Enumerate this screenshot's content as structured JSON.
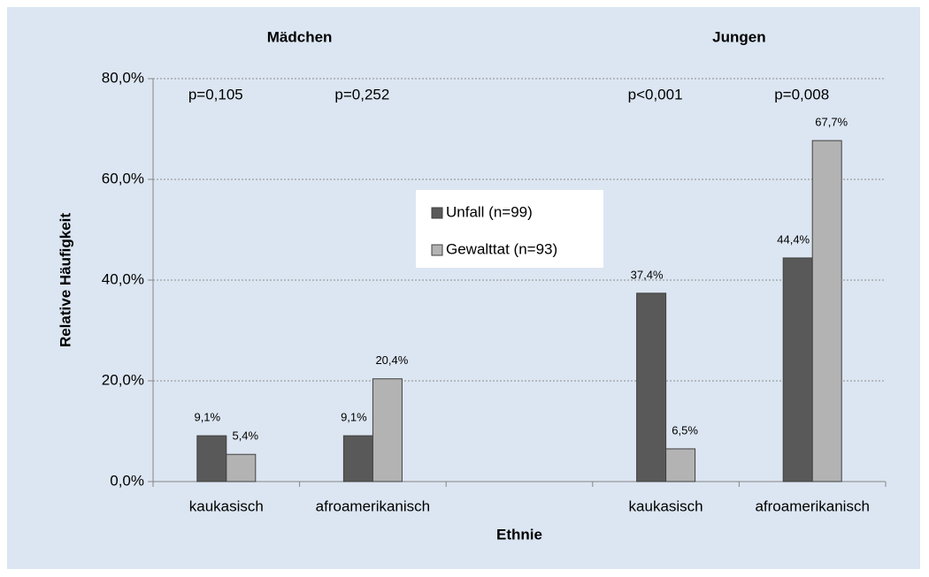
{
  "chart_data": {
    "type": "bar",
    "y_label": "Relative Häufigkeit",
    "x_label": "Ethnie",
    "groups": [
      "Mädchen",
      "Jungen"
    ],
    "categories": [
      "kaukasisch",
      "afroamerikanisch",
      null,
      "kaukasisch",
      "afroamerikanisch"
    ],
    "annotations": [
      "p=0,105",
      "p=0,252",
      null,
      "p<0,001",
      "p=0,008"
    ],
    "series": [
      {
        "name": "Unfall (n=99)",
        "color": "#595959",
        "values": [
          9.1,
          9.1,
          null,
          37.4,
          44.4
        ],
        "value_labels": [
          "9,1%",
          "9,1%",
          null,
          "37,4%",
          "44,4%"
        ]
      },
      {
        "name": "Gewalttat (n=93)",
        "color": "#b3b3b3",
        "values": [
          5.4,
          20.4,
          null,
          6.5,
          67.7
        ],
        "value_labels": [
          "5,4%",
          "20,4%",
          null,
          "6,5%",
          "67,7%"
        ]
      }
    ],
    "ylim": [
      0,
      80
    ],
    "yticks": [
      {
        "value": 0,
        "label": "0,0%"
      },
      {
        "value": 20,
        "label": "20,0%"
      },
      {
        "value": 40,
        "label": "40,0%"
      },
      {
        "value": 60,
        "label": "60,0%"
      },
      {
        "value": 80,
        "label": "80,0%"
      }
    ],
    "grid": true
  }
}
